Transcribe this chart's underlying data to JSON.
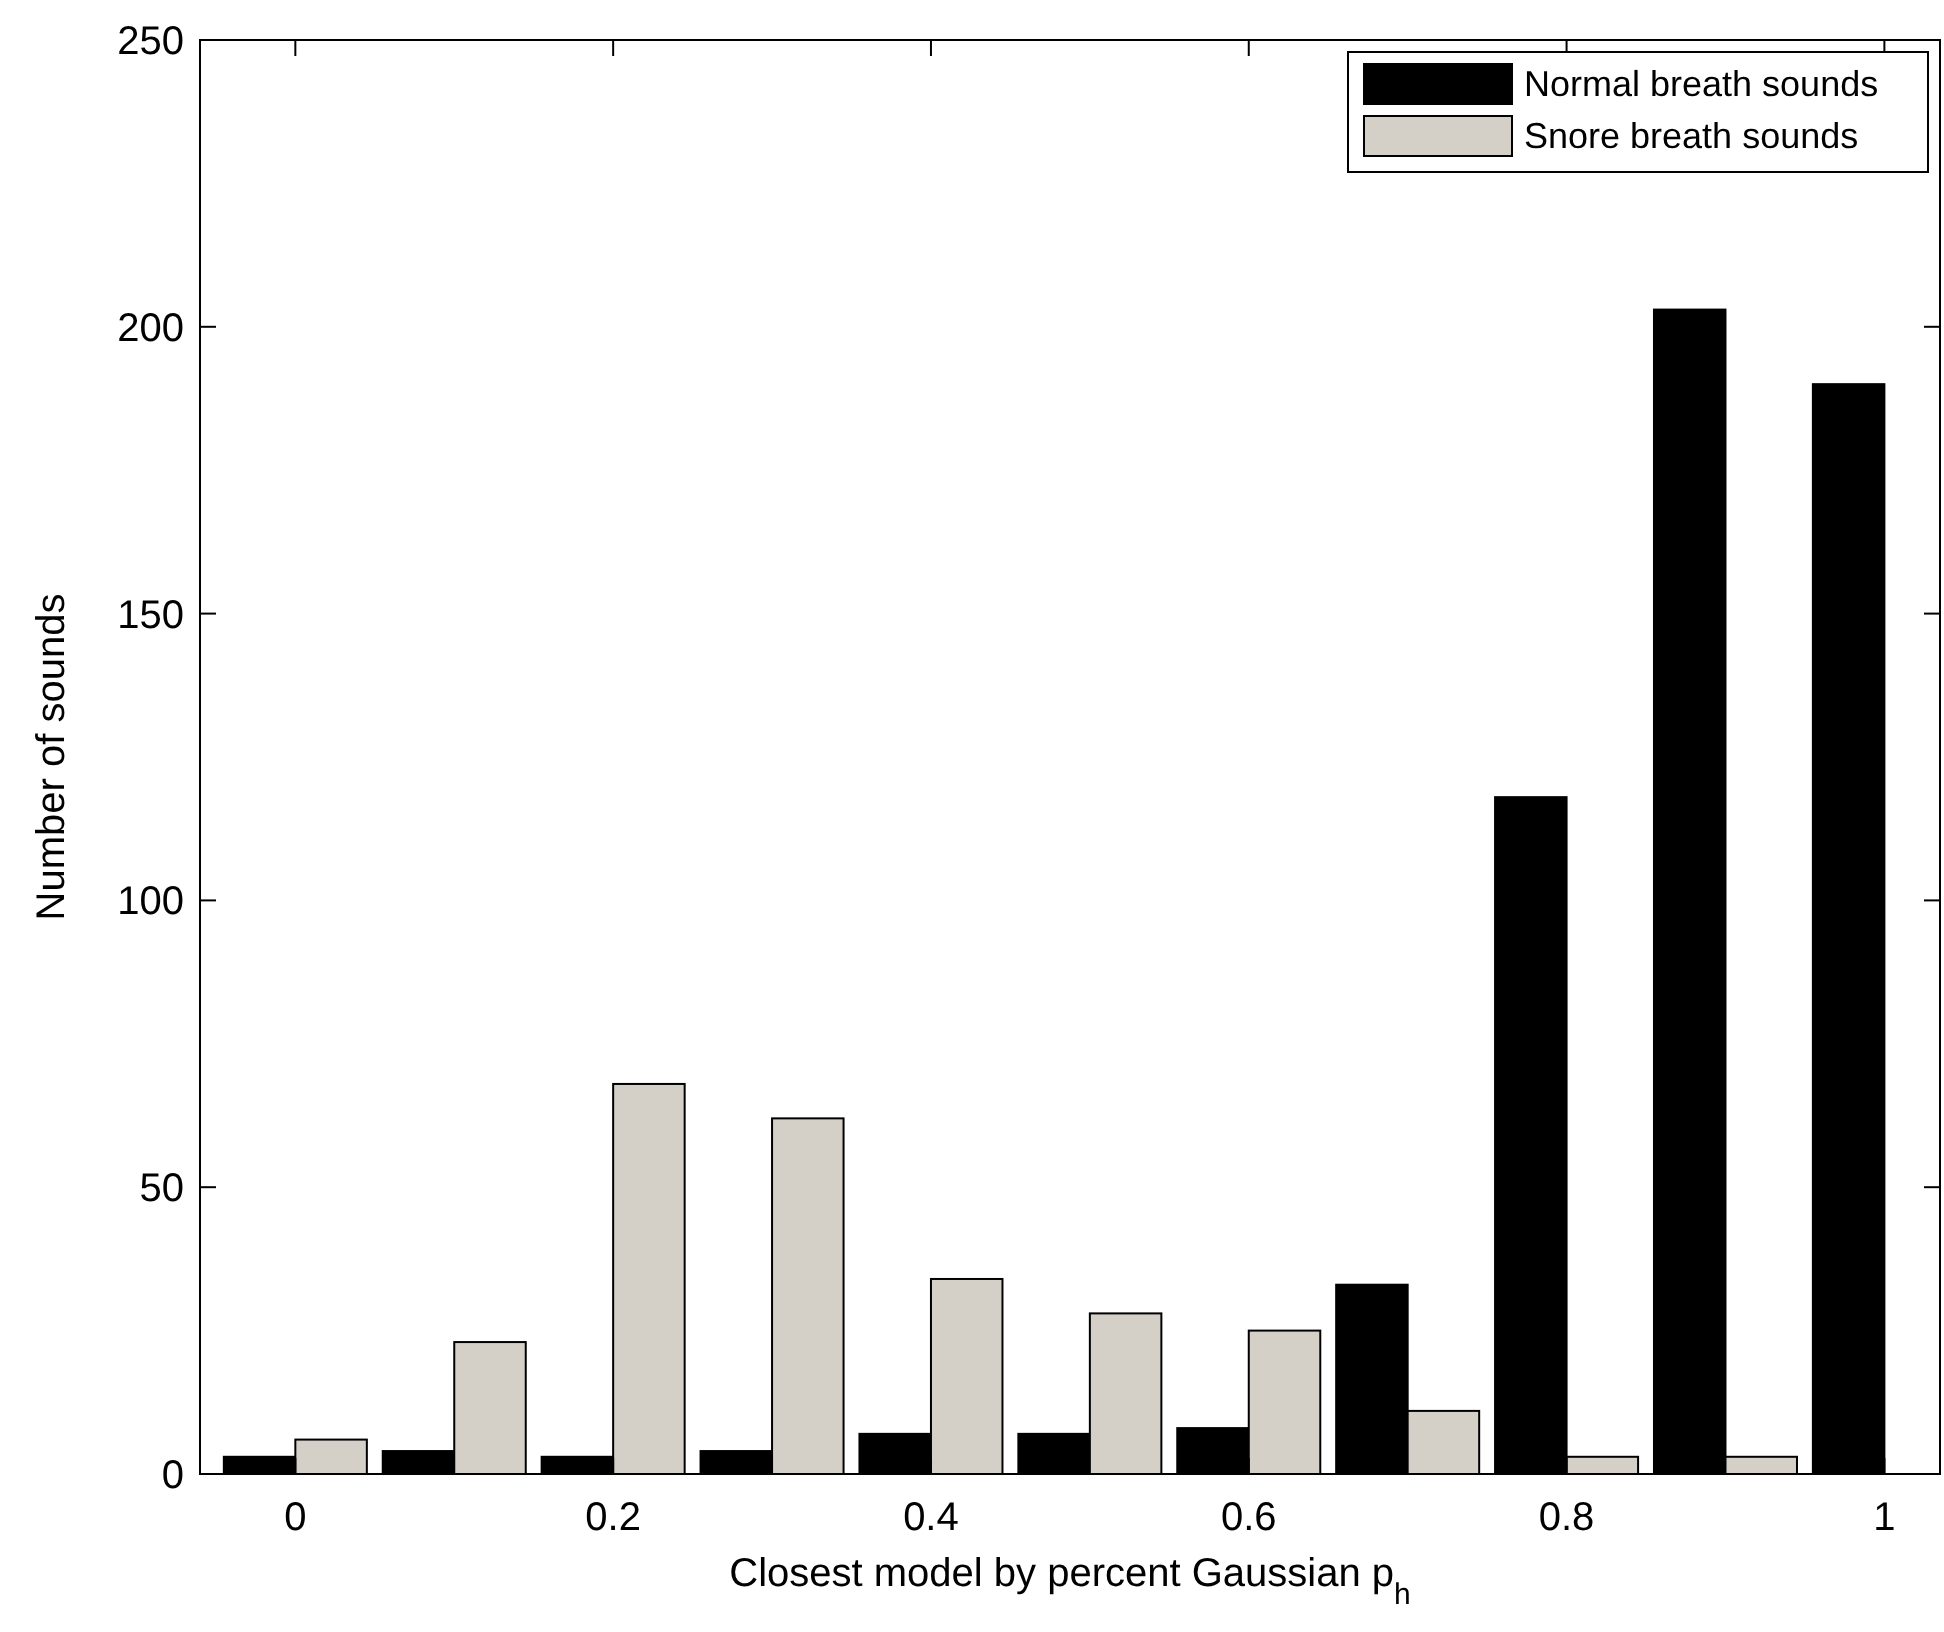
{
  "chart_data": {
    "type": "bar",
    "xlabel": "Closest model by percent Gaussian p$_{h}$",
    "ylabel": "Number of sounds",
    "x": [
      0,
      0.1,
      0.2,
      0.3,
      0.4,
      0.5,
      0.6,
      0.7,
      0.8,
      0.9,
      1
    ],
    "series": [
      {
        "name": "Normal breath sounds",
        "color": "#000000",
        "values": [
          3,
          4,
          3,
          4,
          7,
          7,
          8,
          33,
          118,
          203,
          190
        ]
      },
      {
        "name": "Snore breath sounds",
        "color": "#d4d0c8",
        "values": [
          6,
          23,
          68,
          62,
          34,
          28,
          25,
          11,
          3,
          3,
          0
        ]
      }
    ],
    "xlim": [
      -0.06,
      1.035
    ],
    "xticks": [
      0,
      0.2,
      0.4,
      0.6,
      0.8,
      1
    ],
    "ylim": [
      0,
      250
    ],
    "yticks": [
      0,
      50,
      100,
      150,
      200,
      250
    ],
    "grid": false,
    "legend": "top right"
  }
}
